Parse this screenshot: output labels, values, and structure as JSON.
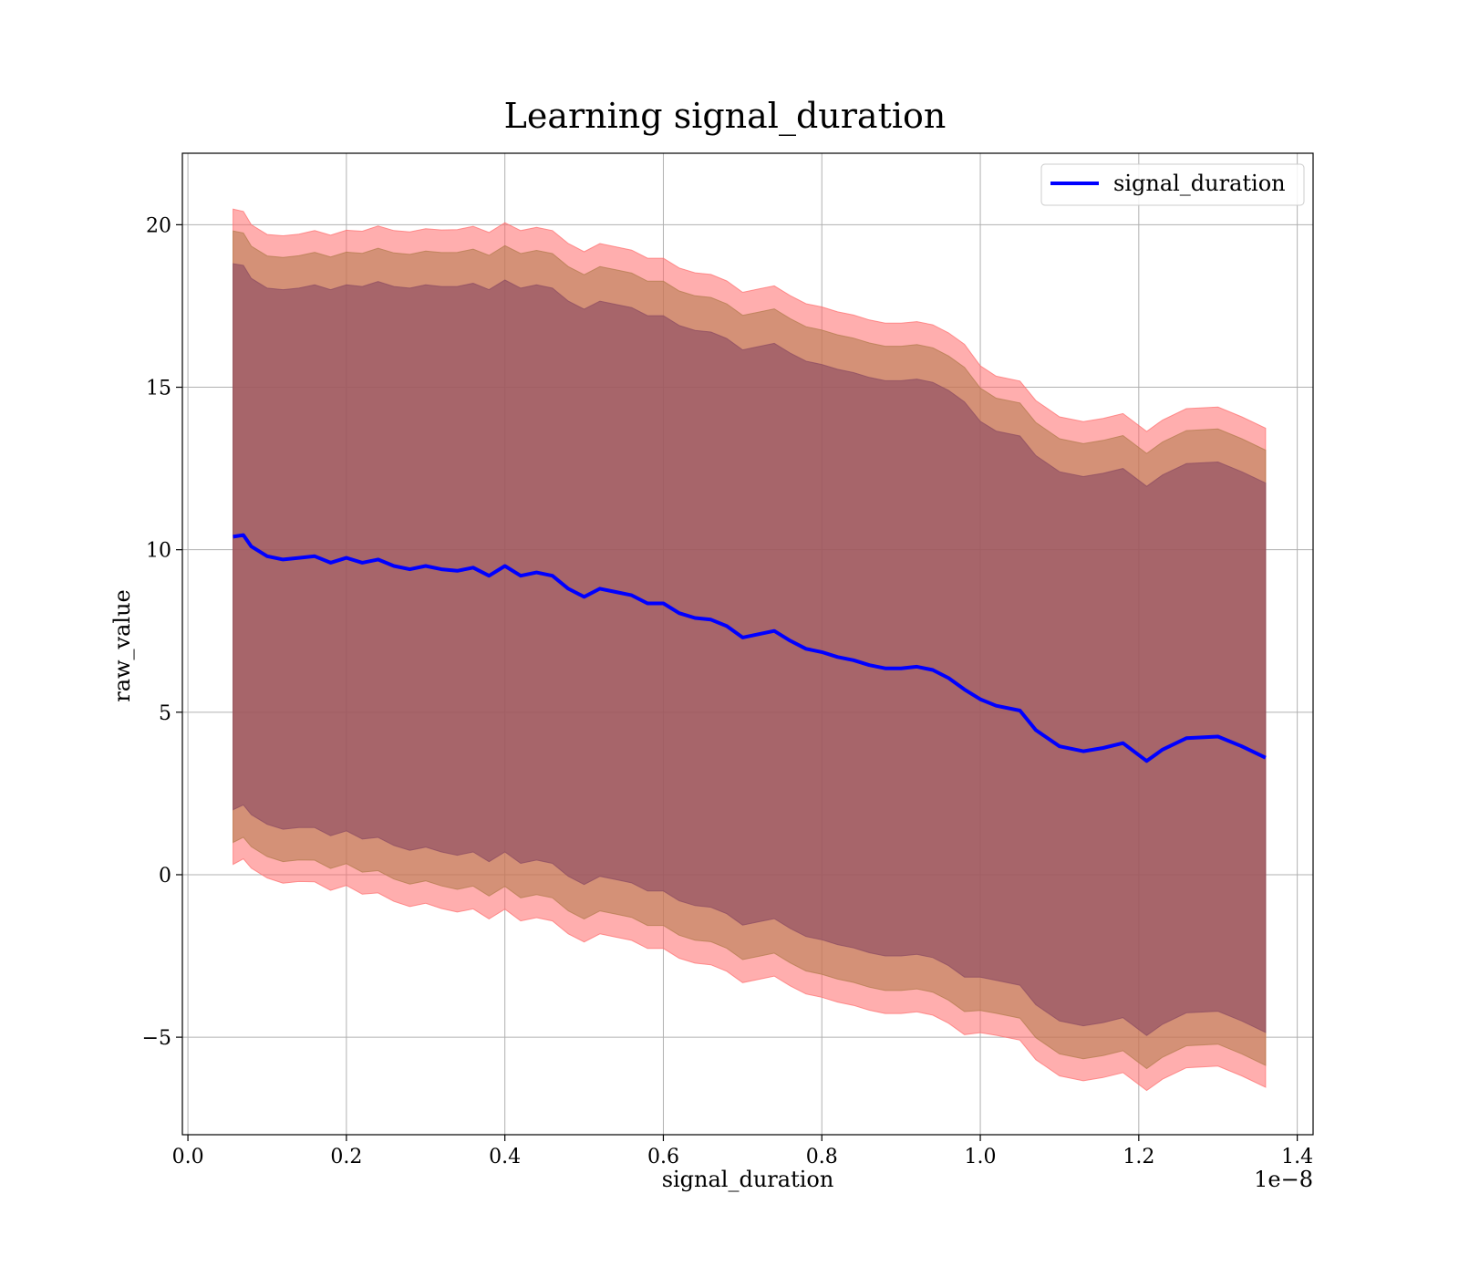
{
  "chart_data": {
    "type": "line",
    "title": "Learning signal_duration",
    "xlabel": "signal_duration",
    "ylabel": "raw_value",
    "x_offset_text": "1e−8",
    "xlim": [
      -0.007,
      1.42
    ],
    "ylim": [
      -8.0,
      22.2
    ],
    "x_ticks": [
      0.0,
      0.2,
      0.4,
      0.6,
      0.8,
      1.0,
      1.2,
      1.4
    ],
    "x_tick_labels": [
      "0.0",
      "0.2",
      "0.4",
      "0.6",
      "0.8",
      "1.0",
      "1.2",
      "1.4"
    ],
    "y_ticks": [
      -5,
      0,
      5,
      10,
      15,
      20
    ],
    "y_tick_labels": [
      "−5",
      "0",
      "5",
      "10",
      "15",
      "20"
    ],
    "grid": true,
    "legend_position": "top-right",
    "colors": {
      "line": "#0000ff",
      "band_outer": "#ff6b6b",
      "band_middle": "#b07a4a",
      "band_inner": "#8a4a63"
    },
    "series": [
      {
        "name": "signal_duration",
        "x": [
          0.057,
          0.07,
          0.08,
          0.1,
          0.12,
          0.14,
          0.16,
          0.18,
          0.2,
          0.22,
          0.24,
          0.26,
          0.28,
          0.3,
          0.32,
          0.34,
          0.36,
          0.38,
          0.4,
          0.42,
          0.44,
          0.46,
          0.48,
          0.5,
          0.52,
          0.54,
          0.56,
          0.58,
          0.6,
          0.62,
          0.64,
          0.66,
          0.68,
          0.7,
          0.72,
          0.74,
          0.76,
          0.78,
          0.8,
          0.82,
          0.84,
          0.86,
          0.88,
          0.9,
          0.92,
          0.94,
          0.96,
          0.98,
          1.0,
          1.02,
          1.05,
          1.07,
          1.1,
          1.13,
          1.155,
          1.18,
          1.21,
          1.23,
          1.26,
          1.3,
          1.33,
          1.36
        ],
        "y": [
          10.4,
          10.45,
          10.1,
          9.8,
          9.7,
          9.75,
          9.8,
          9.6,
          9.75,
          9.6,
          9.7,
          9.5,
          9.4,
          9.5,
          9.4,
          9.35,
          9.45,
          9.2,
          9.5,
          9.2,
          9.3,
          9.2,
          8.8,
          8.55,
          8.8,
          8.7,
          8.6,
          8.35,
          8.35,
          8.05,
          7.9,
          7.85,
          7.65,
          7.3,
          7.4,
          7.5,
          7.2,
          6.95,
          6.85,
          6.7,
          6.6,
          6.45,
          6.35,
          6.35,
          6.4,
          6.3,
          6.05,
          5.7,
          5.4,
          5.2,
          5.05,
          4.45,
          3.95,
          3.8,
          3.9,
          4.05,
          3.5,
          3.85,
          4.2,
          4.25,
          3.95,
          3.6
        ],
        "std": [
          8.4,
          8.3,
          8.25,
          8.25,
          8.3,
          8.3,
          8.35,
          8.4,
          8.4,
          8.5,
          8.55,
          8.6,
          8.65,
          8.65,
          8.7,
          8.75,
          8.75,
          8.8,
          8.8,
          8.85,
          8.85,
          8.85,
          8.85,
          8.85,
          8.85,
          8.85,
          8.85,
          8.85,
          8.85,
          8.85,
          8.85,
          8.85,
          8.85,
          8.85,
          8.85,
          8.85,
          8.85,
          8.85,
          8.85,
          8.85,
          8.85,
          8.85,
          8.85,
          8.85,
          8.85,
          8.85,
          8.85,
          8.85,
          8.55,
          8.45,
          8.45,
          8.45,
          8.45,
          8.45,
          8.45,
          8.45,
          8.45,
          8.45,
          8.45,
          8.45,
          8.45,
          8.45
        ]
      }
    ],
    "bands": [
      {
        "name": "outer",
        "sigma_scale": 1.2
      },
      {
        "name": "middle",
        "sigma_scale": 1.12
      },
      {
        "name": "inner",
        "sigma_scale": 1.0
      }
    ]
  }
}
